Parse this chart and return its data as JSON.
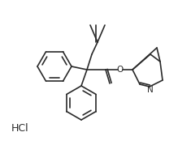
{
  "bg_color": "#ffffff",
  "line_color": "#2a2a2a",
  "line_width": 1.2,
  "text_color": "#2a2a2a",
  "hcl_text": "HCl",
  "n_text": "N",
  "o_text": "O",
  "figsize": [
    2.35,
    1.79
  ],
  "dpi": 100
}
